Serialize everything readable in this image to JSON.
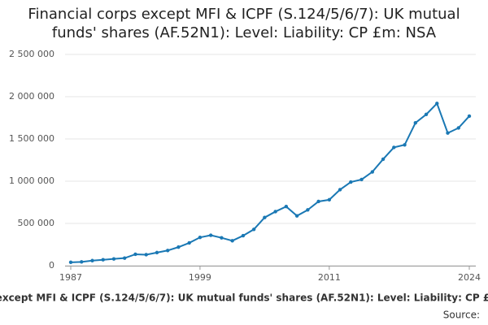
{
  "chart_data": {
    "type": "line",
    "title": "Financial corps except MFI & ICPF (S.124/5/6/7): UK mutual funds' shares (AF.52N1): Level: Liability: CP £m: NSA",
    "source_label": "Source:",
    "x": [
      1987,
      1988,
      1989,
      1990,
      1991,
      1992,
      1993,
      1994,
      1995,
      1996,
      1997,
      1998,
      1999,
      2000,
      2001,
      2002,
      2003,
      2004,
      2005,
      2006,
      2007,
      2008,
      2009,
      2010,
      2011,
      2012,
      2013,
      2014,
      2015,
      2016,
      2017,
      2018,
      2019,
      2020,
      2021,
      2022,
      2023,
      2024
    ],
    "series": [
      {
        "color": "#1a78b4",
        "values": [
          40000,
          45000,
          60000,
          70000,
          80000,
          90000,
          135000,
          130000,
          155000,
          180000,
          220000,
          270000,
          335000,
          360000,
          330000,
          295000,
          355000,
          430000,
          570000,
          640000,
          700000,
          590000,
          660000,
          760000,
          780000,
          900000,
          990000,
          1020000,
          1110000,
          1260000,
          1400000,
          1430000,
          1690000,
          1790000,
          1920000,
          1570000,
          1630000,
          1770000
        ]
      }
    ],
    "xlim": [
      1987,
      2024
    ],
    "xticks": [
      1987,
      1999,
      2011,
      2024
    ],
    "ylim": [
      0,
      2500000
    ],
    "yticks": [
      0,
      {
        "value": 500000,
        "label": "500 000"
      },
      {
        "value": 1000000,
        "label": "1 000 000"
      },
      {
        "value": 1500000,
        "label": "1 500 000"
      },
      {
        "value": 2000000,
        "label": "2 000 000"
      },
      {
        "value": 2500000,
        "label": "2 500 000"
      }
    ],
    "grid": true
  }
}
